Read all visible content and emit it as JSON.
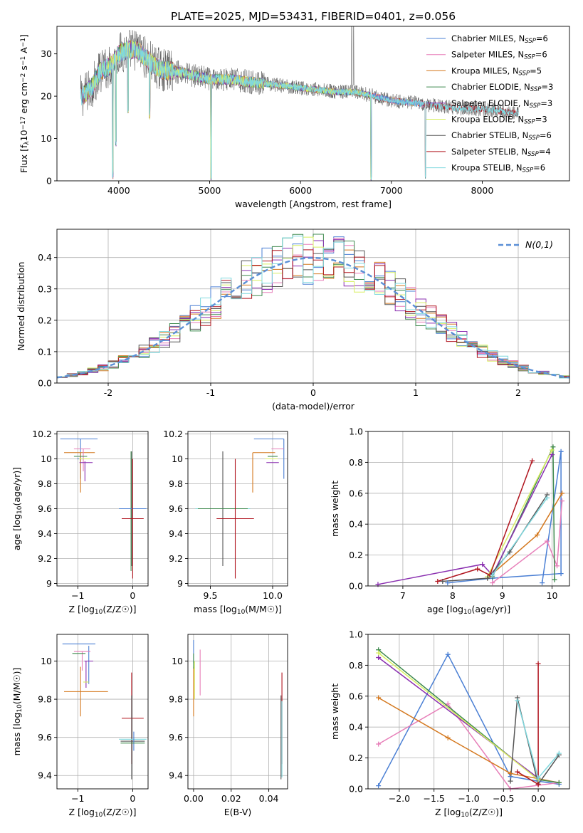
{
  "title": "PLATE=2025, MJD=53431, FIBERID=0401, z=0.056",
  "colors": {
    "Chabrier MILES": "#4a7fd4",
    "Salpeter MILES": "#e77fb9",
    "Kroupa MILES": "#d4781e",
    "Chabrier ELODIE": "#3f8a4f",
    "Salpeter ELODIE": "#8a2fb0",
    "Kroupa ELODIE": "#d8ef62",
    "Chabrier STELIB": "#555555",
    "Salpeter STELIB": "#b0141e",
    "Kroupa STELIB": "#7fd8de"
  },
  "chart_data": [
    {
      "type": "line",
      "title": "PLATE=2025, MJD=53431, FIBERID=0401, z=0.056",
      "xlabel": "wavelength [Angstrom, rest frame]",
      "ylabel": "Flux [f_λ10^-17 erg cm^-2 s^-1 A^-1]",
      "xlim": [
        3320,
        8960
      ],
      "ylim": [
        0,
        36.5
      ],
      "xticks": [
        4000,
        5000,
        6000,
        7000,
        8000
      ],
      "yticks": [
        0,
        10,
        20,
        30
      ],
      "grid": false,
      "legend": "top-right",
      "legend_entries": [
        {
          "model": "Chabrier MILES",
          "label": "Chabrier MILES, N",
          "sub": "SSP",
          "n": "=6"
        },
        {
          "model": "Salpeter MILES",
          "label": "Salpeter MILES, N",
          "sub": "SSP",
          "n": "=6"
        },
        {
          "model": "Kroupa MILES",
          "label": "Kroupa MILES, N",
          "sub": "SSP",
          "n": "=5"
        },
        {
          "model": "Chabrier ELODIE",
          "label": "Chabrier ELODIE, N",
          "sub": "SSP",
          "n": "=3"
        },
        {
          "model": "Salpeter ELODIE",
          "label": "Salpeter ELODIE, N",
          "sub": "SSP",
          "n": "=3"
        },
        {
          "model": "Kroupa ELODIE",
          "label": "Kroupa ELODIE, N",
          "sub": "SSP",
          "n": "=3"
        },
        {
          "model": "Chabrier STELIB",
          "label": "Chabrier STELIB, N",
          "sub": "SSP",
          "n": "=6"
        },
        {
          "model": "Salpeter STELIB",
          "label": "Salpeter STELIB, N",
          "sub": "SSP",
          "n": "=4"
        },
        {
          "model": "Kroupa STELIB",
          "label": "Kroupa STELIB, N",
          "sub": "SSP",
          "n": "=6"
        }
      ],
      "spectrum_profile": {
        "x": [
          3600,
          3700,
          3800,
          3900,
          4000,
          4100,
          4200,
          4300,
          4400,
          4500,
          4600,
          4800,
          5000,
          5200,
          5400,
          5600,
          5800,
          6000,
          6200,
          6400,
          6600,
          6800,
          7000,
          7200,
          7400,
          7600,
          7800,
          8000,
          8200,
          8400
        ],
        "y": [
          20,
          22,
          26,
          27,
          30,
          31,
          31,
          29,
          27,
          26,
          26,
          25,
          24,
          24,
          23.5,
          23,
          22.5,
          22,
          21.5,
          21,
          21,
          20,
          19,
          18.5,
          18,
          17.5,
          17,
          17,
          16.5,
          16
        ]
      },
      "absorption_dips": [
        {
          "x": 3934,
          "y": 0.5
        },
        {
          "x": 3969,
          "y": 8
        },
        {
          "x": 4102,
          "y": 16
        },
        {
          "x": 4340,
          "y": 14.5
        },
        {
          "x": 5016,
          "y": 0
        },
        {
          "x": 6777,
          "y": 0
        },
        {
          "x": 7375,
          "y": 0
        }
      ],
      "emission_spikes": [
        {
          "x": 6563,
          "y": 36.5
        },
        {
          "x": 6584,
          "y": 36.5
        }
      ]
    },
    {
      "type": "step",
      "xlabel": "(data-model)/error",
      "ylabel": "Normed distribution",
      "xlim": [
        -2.5,
        2.5
      ],
      "ylim": [
        0,
        0.49
      ],
      "xticks": [
        -2,
        -1,
        0,
        1,
        2
      ],
      "yticks": [
        0.0,
        0.1,
        0.2,
        0.3,
        0.4
      ],
      "grid": true,
      "legend": "top-right",
      "legend_entry": "N(0,1)",
      "reference": {
        "name": "N(0,1)",
        "mean": 0,
        "sigma": 1,
        "style": "dashed"
      },
      "bin_width": 0.1
    },
    {
      "type": "errorbar",
      "xlabel": "Z [log10(Z/Z☉)]",
      "ylabel": "age  [log10(age/yr)]",
      "xlim": [
        -1.38,
        0.28
      ],
      "ylim": [
        8.98,
        10.22
      ],
      "xticks": [
        {
          "v": -1,
          "label": "−1"
        },
        {
          "v": 0,
          "label": "0"
        }
      ],
      "yticks": [
        9.0,
        9.2,
        9.4,
        9.6,
        9.8,
        10.0,
        10.2
      ],
      "grid": true,
      "points": [
        {
          "model": "Chabrier MILES",
          "x": -0.98,
          "xerr": 0.34,
          "y": 10.16,
          "yerr": 0
        },
        {
          "model": "Chabrier MILES",
          "x": -0.95,
          "xerr": 0.06,
          "y": 10.0,
          "yerr": 0.16
        },
        {
          "model": "Kroupa MILES",
          "x": -0.97,
          "xerr": 0.28,
          "y": 10.05,
          "yerr": 0
        },
        {
          "model": "Kroupa MILES",
          "x": -0.95,
          "xerr": 0,
          "y": 9.89,
          "yerr": 0.16
        },
        {
          "model": "Salpeter MILES",
          "x": -0.92,
          "xerr": 0.15,
          "y": 10.08,
          "yerr": 0
        },
        {
          "model": "Salpeter MILES",
          "x": -0.9,
          "xerr": 0,
          "y": 9.99,
          "yerr": 0.09
        },
        {
          "model": "Chabrier ELODIE",
          "x": -0.95,
          "xerr": 0.12,
          "y": 10.02,
          "yerr": 0
        },
        {
          "model": "Salpeter ELODIE",
          "x": -0.85,
          "xerr": 0.12,
          "y": 9.97,
          "yerr": 0
        },
        {
          "model": "Salpeter ELODIE",
          "x": -0.87,
          "xerr": 0,
          "y": 9.9,
          "yerr": 0.08
        },
        {
          "model": "Kroupa ELODIE",
          "x": -0.88,
          "xerr": 0.1,
          "y": 10.0,
          "yerr": 0
        },
        {
          "model": "Chabrier STELIB",
          "x": -0.02,
          "xerr": 0,
          "y": 9.6,
          "yerr": 0.46
        },
        {
          "model": "Chabrier ELODIE",
          "x": -0.03,
          "xerr": 0,
          "y": 9.58,
          "yerr": 0.48
        },
        {
          "model": "Kroupa STELIB",
          "x": 0.0,
          "xerr": 0.25,
          "y": 9.6,
          "yerr": 0
        },
        {
          "model": "Chabrier MILES",
          "x": 0.0,
          "xerr": 0.25,
          "y": 9.6,
          "yerr": 0
        },
        {
          "model": "Salpeter STELIB",
          "x": 0.0,
          "xerr": 0.2,
          "y": 9.52,
          "yerr": 0
        },
        {
          "model": "Salpeter STELIB",
          "x": 0.0,
          "xerr": 0,
          "y": 9.52,
          "yerr": 0.48
        }
      ]
    },
    {
      "type": "errorbar",
      "xlabel": "mass [log10(M/M☉)]",
      "ylabel": "",
      "xlim": [
        9.32,
        10.12
      ],
      "ylim": [
        8.98,
        10.22
      ],
      "xticks": [
        {
          "v": 9.5,
          "label": "9.5"
        },
        {
          "v": 10.0,
          "label": "10.0"
        }
      ],
      "yticks": [
        9.0,
        9.2,
        9.4,
        9.6,
        9.8,
        10.0,
        10.2
      ],
      "grid": true,
      "points": [
        {
          "model": "Chabrier MILES",
          "x": 9.97,
          "xerr": 0.12,
          "y": 10.16,
          "yerr": 0
        },
        {
          "model": "Chabrier MILES",
          "x": 10.09,
          "xerr": 0,
          "y": 10.0,
          "yerr": 0.16
        },
        {
          "model": "Kroupa MILES",
          "x": 9.93,
          "xerr": 0.09,
          "y": 10.05,
          "yerr": 0
        },
        {
          "model": "Kroupa MILES",
          "x": 9.84,
          "xerr": 0,
          "y": 9.89,
          "yerr": 0.16
        },
        {
          "model": "Salpeter MILES",
          "x": 10.04,
          "xerr": 0.05,
          "y": 10.08,
          "yerr": 0
        },
        {
          "model": "Chabrier ELODIE",
          "x": 10.0,
          "xerr": 0.04,
          "y": 10.02,
          "yerr": 0
        },
        {
          "model": "Salpeter ELODIE",
          "x": 10.0,
          "xerr": 0.05,
          "y": 9.97,
          "yerr": 0
        },
        {
          "model": "Kroupa ELODIE",
          "x": 9.99,
          "xerr": 0.05,
          "y": 10.0,
          "yerr": 0
        },
        {
          "model": "Kroupa STELIB",
          "x": 9.6,
          "xerr": 0.22,
          "y": 9.6,
          "yerr": 0
        },
        {
          "model": "Chabrier STELIB",
          "x": 9.6,
          "xerr": 0,
          "y": 9.6,
          "yerr": 0.46
        },
        {
          "model": "Chabrier ELODIE",
          "x": 9.6,
          "xerr": 0.2,
          "y": 9.6,
          "yerr": 0
        },
        {
          "model": "Salpeter STELIB",
          "x": 9.7,
          "xerr": 0.15,
          "y": 9.52,
          "yerr": 0
        },
        {
          "model": "Salpeter STELIB",
          "x": 9.7,
          "xerr": 0,
          "y": 9.52,
          "yerr": 0.48
        }
      ]
    },
    {
      "type": "line",
      "xlabel": "age  [log10(age/yr)]",
      "ylabel": "mass weight",
      "xlim": [
        6.3,
        10.35
      ],
      "ylim": [
        0,
        1.0
      ],
      "xticks": [
        7,
        8,
        9,
        10
      ],
      "yticks": [
        0.0,
        0.2,
        0.4,
        0.6,
        0.8,
        1.0
      ],
      "grid": true,
      "series": [
        {
          "model": "Chabrier MILES",
          "x": [
            9.8,
            10.18,
            10.18,
            8.8,
            7.9
          ],
          "y": [
            0.02,
            0.87,
            0.08,
            0.05,
            0.02
          ]
        },
        {
          "model": "Salpeter MILES",
          "x": [
            8.8,
            9.9,
            10.1,
            10.2
          ],
          "y": [
            0.02,
            0.29,
            0.13,
            0.55
          ]
        },
        {
          "model": "Kroupa MILES",
          "x": [
            8.7,
            9.7,
            10.2
          ],
          "y": [
            0.05,
            0.33,
            0.6
          ]
        },
        {
          "model": "Chabrier ELODIE",
          "x": [
            8.8,
            10.02,
            10.05
          ],
          "y": [
            0.06,
            0.9,
            0.04
          ]
        },
        {
          "model": "Salpeter ELODIE",
          "x": [
            6.5,
            8.6,
            8.8,
            10.0
          ],
          "y": [
            0.01,
            0.14,
            0.07,
            0.85
          ]
        },
        {
          "model": "Kroupa ELODIE",
          "x": [
            8.7,
            10.0
          ],
          "y": [
            0.06,
            0.88
          ]
        },
        {
          "model": "Chabrier STELIB",
          "x": [
            7.8,
            8.7,
            9.15,
            9.9
          ],
          "y": [
            0.03,
            0.05,
            0.22,
            0.59
          ]
        },
        {
          "model": "Salpeter STELIB",
          "x": [
            7.7,
            8.5,
            8.75,
            9.6
          ],
          "y": [
            0.03,
            0.11,
            0.07,
            0.81
          ]
        },
        {
          "model": "Kroupa STELIB",
          "x": [
            8.8,
            9.9
          ],
          "y": [
            0.07,
            0.57
          ]
        }
      ]
    },
    {
      "type": "errorbar",
      "xlabel": "Z [log10(Z/Z☉)]",
      "ylabel": "mass [log10(M/M☉)]",
      "xlim": [
        -1.38,
        0.28
      ],
      "ylim": [
        9.33,
        10.14
      ],
      "xticks": [
        {
          "v": -1,
          "label": "−1"
        },
        {
          "v": 0,
          "label": "0"
        }
      ],
      "yticks": [
        9.4,
        9.6,
        9.8,
        10.0
      ],
      "grid": true,
      "points": [
        {
          "model": "Chabrier MILES",
          "x": -0.98,
          "xerr": 0.3,
          "y": 10.09,
          "yerr": 0
        },
        {
          "model": "Chabrier MILES",
          "x": -0.8,
          "xerr": 0,
          "y": 9.98,
          "yerr": 0.1
        },
        {
          "model": "Salpeter MILES",
          "x": -0.92,
          "xerr": 0.15,
          "y": 10.05,
          "yerr": 0
        },
        {
          "model": "Salpeter MILES",
          "x": -0.92,
          "xerr": 0,
          "y": 10.0,
          "yerr": 0.05
        },
        {
          "model": "Kroupa MILES",
          "x": -0.85,
          "xerr": 0.4,
          "y": 9.84,
          "yerr": 0
        },
        {
          "model": "Kroupa MILES",
          "x": -0.95,
          "xerr": 0,
          "y": 9.84,
          "yerr": 0.13
        },
        {
          "model": "Chabrier ELODIE",
          "x": -0.98,
          "xerr": 0.12,
          "y": 10.04,
          "yerr": 0
        },
        {
          "model": "Salpeter ELODIE",
          "x": -0.8,
          "xerr": 0.08,
          "y": 10.0,
          "yerr": 0
        },
        {
          "model": "Salpeter ELODIE",
          "x": -0.85,
          "xerr": 0,
          "y": 9.93,
          "yerr": 0.07
        },
        {
          "model": "Kroupa ELODIE",
          "x": -0.85,
          "xerr": 0.05,
          "y": 9.89,
          "yerr": 0
        },
        {
          "model": "Salpeter STELIB",
          "x": 0.0,
          "xerr": 0.2,
          "y": 9.7,
          "yerr": 0
        },
        {
          "model": "Salpeter STELIB",
          "x": -0.02,
          "xerr": 0,
          "y": 9.7,
          "yerr": 0.24
        },
        {
          "model": "Chabrier STELIB",
          "x": 0.0,
          "xerr": 0.22,
          "y": 9.58,
          "yerr": 0
        },
        {
          "model": "Chabrier STELIB",
          "x": -0.02,
          "xerr": 0,
          "y": 9.6,
          "yerr": 0.22
        },
        {
          "model": "Kroupa STELIB",
          "x": 0.0,
          "xerr": 0.25,
          "y": 9.59,
          "yerr": 0
        },
        {
          "model": "Chabrier MILES",
          "x": 0.02,
          "xerr": 0,
          "y": 9.58,
          "yerr": 0.05
        },
        {
          "model": "Chabrier ELODIE",
          "x": 0.0,
          "xerr": 0.22,
          "y": 9.57,
          "yerr": 0
        }
      ]
    },
    {
      "type": "errorbar",
      "xlabel": "E(B-V)",
      "ylabel": "",
      "xlim": [
        -0.003,
        0.05
      ],
      "ylim": [
        9.33,
        10.14
      ],
      "xticks": [
        {
          "v": 0.0,
          "label": "0.00"
        },
        {
          "v": 0.02,
          "label": "0.02"
        },
        {
          "v": 0.04,
          "label": "0.04"
        }
      ],
      "yticks": [
        9.4,
        9.6,
        9.8,
        10.0
      ],
      "grid": true,
      "points": [
        {
          "model": "Chabrier MILES",
          "x": 0.0,
          "y": 10.05,
          "yerr": 0.06
        },
        {
          "model": "Salpeter MILES",
          "x": 0.0035,
          "y": 9.94,
          "yerr": 0.12
        },
        {
          "model": "Kroupa MILES",
          "x": 0.0,
          "y": 9.84,
          "yerr": 0.13
        },
        {
          "model": "Kroupa ELODIE",
          "x": 0.0005,
          "y": 9.9,
          "yerr": 0.1
        },
        {
          "model": "Chabrier ELODIE",
          "x": 0.0,
          "y": 10.0,
          "yerr": 0.04
        },
        {
          "model": "Salpeter STELIB",
          "x": 0.047,
          "y": 9.7,
          "yerr": 0.24
        },
        {
          "model": "Chabrier STELIB",
          "x": 0.0465,
          "y": 9.6,
          "yerr": 0.22
        },
        {
          "model": "Kroupa STELIB",
          "x": 0.047,
          "y": 9.59,
          "yerr": 0.2
        }
      ]
    },
    {
      "type": "line",
      "xlabel": "Z [log10(Z/Z☉)]",
      "ylabel": "mass weight",
      "xlim": [
        -2.45,
        0.45
      ],
      "ylim": [
        0,
        1.0
      ],
      "xticks": [
        {
          "v": -2.0,
          "label": "−2.0"
        },
        {
          "v": -1.5,
          "label": "−1.5"
        },
        {
          "v": -1.0,
          "label": "−1.0"
        },
        {
          "v": -0.5,
          "label": "−0.5"
        },
        {
          "v": 0.0,
          "label": "0.0"
        }
      ],
      "yticks": [
        0.0,
        0.2,
        0.4,
        0.6,
        0.8,
        1.0
      ],
      "grid": true,
      "series": [
        {
          "model": "Chabrier MILES",
          "x": [
            -2.3,
            -1.3,
            -0.4,
            0.0,
            0.3
          ],
          "y": [
            0.02,
            0.87,
            0.08,
            0.05,
            0.03
          ]
        },
        {
          "model": "Salpeter MILES",
          "x": [
            -2.3,
            -1.3,
            -0.4,
            0.3
          ],
          "y": [
            0.29,
            0.55,
            0.0,
            0.04
          ]
        },
        {
          "model": "Kroupa MILES",
          "x": [
            -2.3,
            -1.3,
            -0.4,
            0.3
          ],
          "y": [
            0.59,
            0.33,
            0.1,
            0.04
          ]
        },
        {
          "model": "Chabrier ELODIE",
          "x": [
            -2.3,
            0.0,
            0.3
          ],
          "y": [
            0.9,
            0.06,
            0.04
          ]
        },
        {
          "model": "Salpeter ELODIE",
          "x": [
            -2.3,
            0.0
          ],
          "y": [
            0.85,
            0.07
          ]
        },
        {
          "model": "Kroupa ELODIE",
          "x": [
            -2.3,
            0.0
          ],
          "y": [
            0.88,
            0.06
          ]
        },
        {
          "model": "Chabrier STELIB",
          "x": [
            -0.4,
            -0.3,
            0.0,
            0.3
          ],
          "y": [
            0.05,
            0.59,
            0.03,
            0.22
          ]
        },
        {
          "model": "Salpeter STELIB",
          "x": [
            -0.3,
            0.0,
            0.0
          ],
          "y": [
            0.11,
            0.03,
            0.81
          ]
        },
        {
          "model": "Kroupa STELIB",
          "x": [
            -0.3,
            0.0,
            0.3
          ],
          "y": [
            0.57,
            0.07,
            0.23
          ]
        }
      ]
    }
  ]
}
